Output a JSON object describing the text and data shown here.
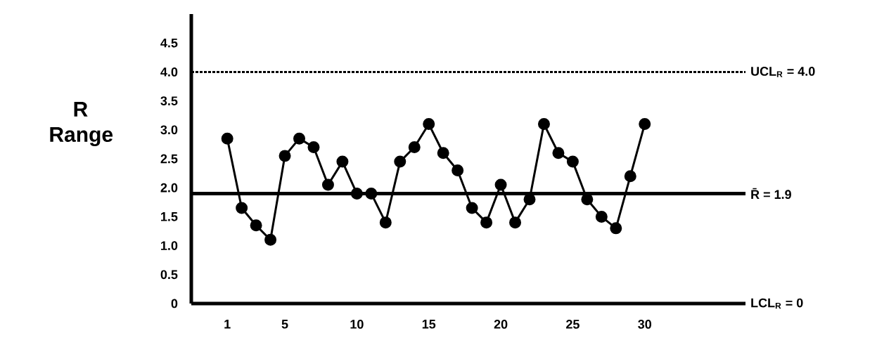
{
  "chart_data": {
    "type": "line",
    "ylabel": "R Range",
    "x": [
      1,
      2,
      3,
      4,
      5,
      6,
      7,
      8,
      9,
      10,
      11,
      12,
      13,
      14,
      15,
      16,
      17,
      18,
      19,
      20,
      21,
      22,
      23,
      24,
      25,
      26,
      27,
      28,
      29,
      30
    ],
    "series": [
      {
        "color": "#000000",
        "values": [
          2.85,
          1.65,
          1.35,
          1.1,
          2.55,
          2.85,
          2.7,
          2.05,
          2.45,
          1.9,
          1.9,
          1.4,
          2.45,
          2.7,
          3.1,
          2.6,
          2.3,
          1.65,
          1.4,
          2.05,
          1.4,
          1.8,
          3.1,
          2.6,
          2.45,
          1.8,
          1.5,
          1.3,
          2.2,
          3.1
        ]
      }
    ],
    "xlim": [
      -1.5,
      37
    ],
    "ylim": [
      0,
      5
    ],
    "xticks": [
      1,
      5,
      10,
      15,
      20,
      25,
      30
    ],
    "yticks": [
      0,
      {
        "value": 0.5,
        "label": "0.5"
      },
      {
        "value": 1,
        "label": "1.0"
      },
      {
        "value": 1.5,
        "label": "1.5"
      },
      {
        "value": 2,
        "label": "2.0"
      },
      {
        "value": 2.5,
        "label": "2.5"
      },
      {
        "value": 3,
        "label": "3.0"
      },
      {
        "value": 3.5,
        "label": "3.5"
      },
      {
        "value": 4,
        "label": "4.0"
      },
      {
        "value": 4.5,
        "label": "4.5"
      }
    ],
    "ref_lines": [
      {
        "axis": "y",
        "value": 4.0,
        "label": "UCL$_{R}$ = 4.0",
        "color": "#000000",
        "line_style": "dotted"
      },
      {
        "axis": "y",
        "value": 1.9,
        "label": "R̄ = 1.9",
        "color": "#000000",
        "line_style": "solid"
      }
    ],
    "annotations": [
      "LCL$_{R}$ = 0"
    ],
    "marker": "circle",
    "line_style": "solid",
    "grid": false
  }
}
